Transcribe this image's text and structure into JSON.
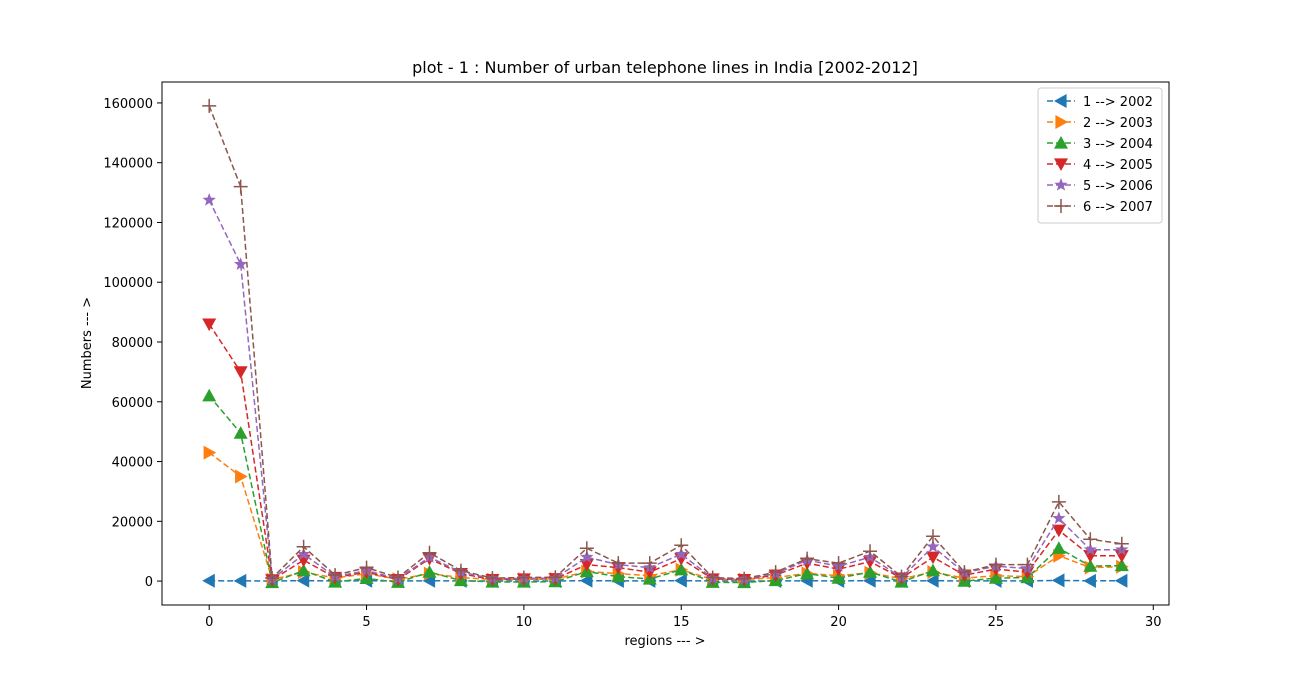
{
  "chart_data": {
    "type": "line",
    "title": "plot - 1 : Number of urban telephone lines in India [2002-2012]",
    "xlabel": "regions --- >",
    "ylabel": "Numbers --- >",
    "xlim": [
      -1.5,
      30.5
    ],
    "ylim": [
      -8000,
      167000
    ],
    "xticks": [
      0,
      5,
      10,
      15,
      20,
      25,
      30
    ],
    "yticks": [
      0,
      20000,
      40000,
      60000,
      80000,
      100000,
      120000,
      140000,
      160000
    ],
    "legend_position": "top-right",
    "x": [
      0,
      1,
      2,
      3,
      4,
      5,
      6,
      7,
      8,
      9,
      10,
      11,
      12,
      13,
      14,
      15,
      16,
      17,
      18,
      19,
      20,
      21,
      22,
      23,
      24,
      25,
      26,
      27,
      28,
      29
    ],
    "series": [
      {
        "name": "1 --> 2002",
        "color": "#1f77b4",
        "marker": "triangle-left",
        "values": [
          100,
          80,
          20,
          150,
          40,
          120,
          30,
          110,
          60,
          20,
          30,
          40,
          140,
          90,
          60,
          150,
          20,
          20,
          50,
          100,
          80,
          120,
          30,
          130,
          40,
          80,
          70,
          220,
          90,
          100
        ]
      },
      {
        "name": "2 --> 2003",
        "color": "#ff7f0e",
        "marker": "triangle-right",
        "values": [
          43000,
          35000,
          500,
          3000,
          1000,
          2500,
          600,
          2500,
          1200,
          500,
          600,
          700,
          3200,
          2500,
          1800,
          3800,
          500,
          500,
          1200,
          2600,
          1800,
          2800,
          800,
          3000,
          1000,
          1800,
          1500,
          8500,
          4500,
          4800
        ]
      },
      {
        "name": "3 --> 2004",
        "color": "#2ca02c",
        "marker": "triangle-up",
        "values": [
          62000,
          49500,
          -500,
          3500,
          -300,
          900,
          -400,
          3000,
          200,
          -300,
          -300,
          -200,
          3200,
          1500,
          700,
          3800,
          -400,
          -500,
          200,
          2500,
          1000,
          3000,
          -300,
          3500,
          0,
          1000,
          1200,
          11000,
          5000,
          5200
        ]
      },
      {
        "name": "4 --> 2005",
        "color": "#d62728",
        "marker": "triangle-down",
        "values": [
          86000,
          70000,
          400,
          7000,
          1200,
          3000,
          500,
          7500,
          2500,
          500,
          700,
          800,
          5500,
          4500,
          3000,
          7500,
          700,
          500,
          2000,
          6000,
          4000,
          6500,
          1000,
          8000,
          2000,
          4000,
          3000,
          17000,
          8500,
          8500
        ]
      },
      {
        "name": "5 --> 2006",
        "color": "#9467bd",
        "marker": "star",
        "values": [
          127500,
          106000,
          600,
          9000,
          1500,
          3500,
          800,
          8000,
          3000,
          800,
          900,
          1000,
          8000,
          5500,
          4500,
          9000,
          900,
          600,
          2500,
          7000,
          5000,
          8000,
          1200,
          11500,
          2800,
          5000,
          4200,
          21000,
          10500,
          10500
        ]
      },
      {
        "name": "6 --> 2007",
        "color": "#8c564b",
        "marker": "plus",
        "values": [
          159000,
          132000,
          1000,
          11500,
          2000,
          4500,
          1200,
          9500,
          3500,
          1000,
          1200,
          1300,
          11000,
          6000,
          6000,
          12000,
          1200,
          800,
          3000,
          7500,
          6000,
          10000,
          1500,
          15000,
          3000,
          5500,
          5500,
          26500,
          14000,
          12500
        ]
      }
    ]
  }
}
